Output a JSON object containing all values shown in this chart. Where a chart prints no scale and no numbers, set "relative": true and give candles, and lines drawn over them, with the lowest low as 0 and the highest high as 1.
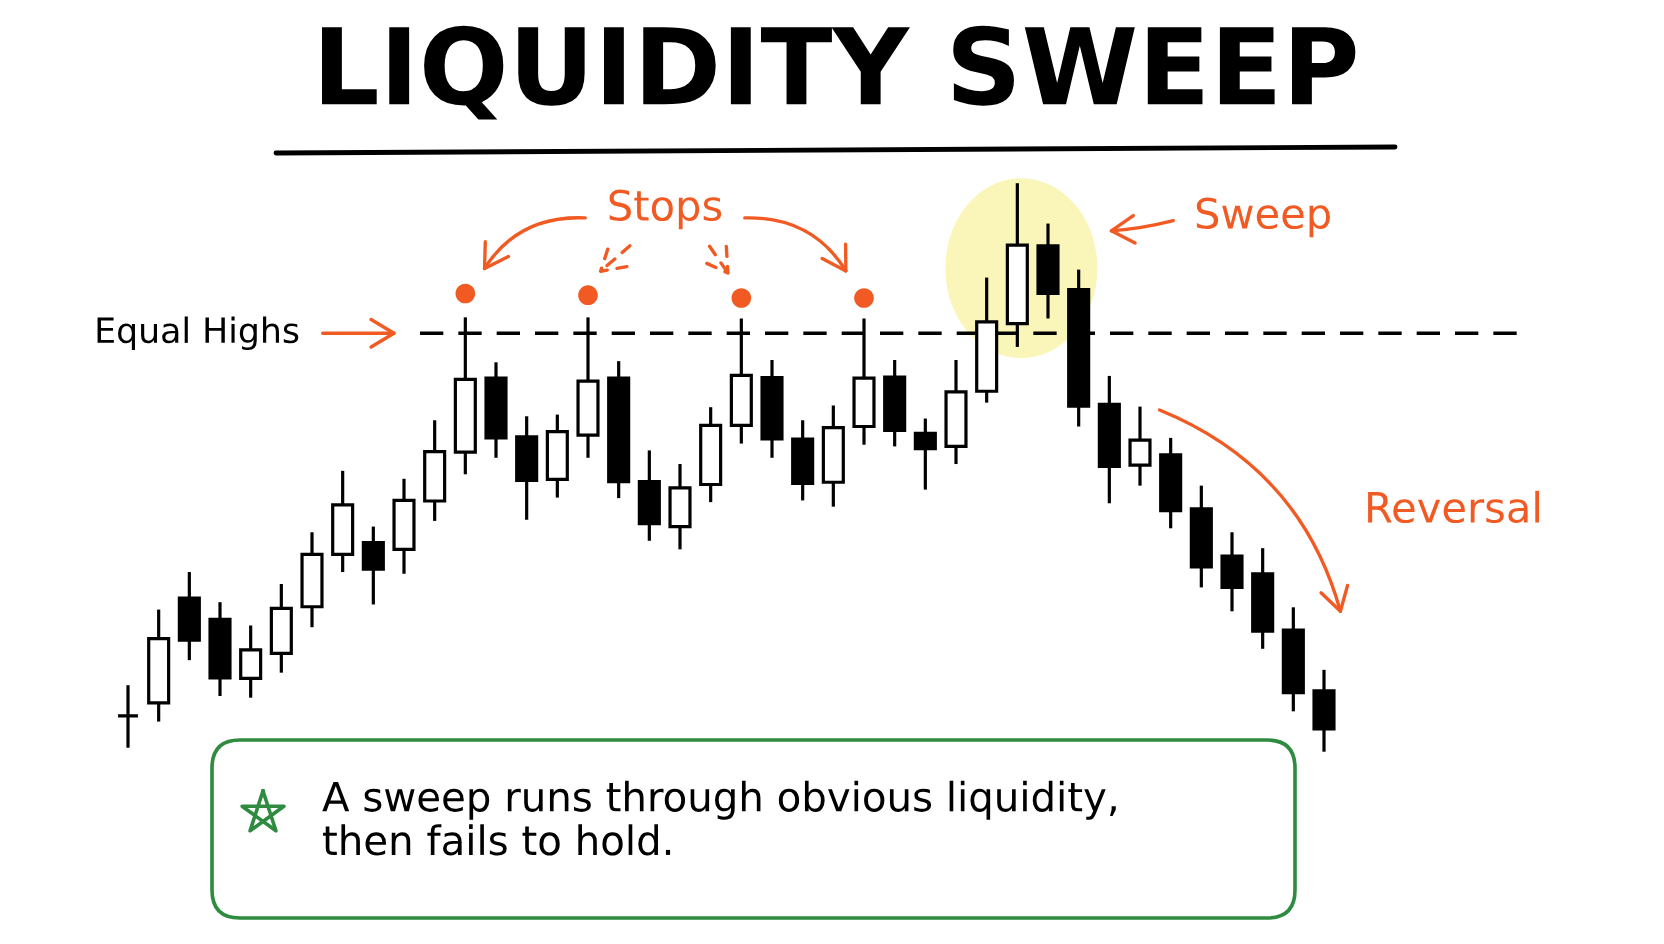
{
  "chart_data": {
    "type": "candlestick",
    "title": "LIQUIDITY SWEEP",
    "relative": true,
    "categories": [
      null,
      null,
      null,
      null,
      null,
      null,
      null,
      null,
      null,
      null,
      null,
      null,
      null,
      null,
      null,
      null,
      null,
      null,
      null,
      null,
      null,
      null,
      null,
      null,
      null,
      null,
      null,
      null,
      null,
      null,
      null,
      null,
      null,
      null,
      null,
      null,
      null,
      null,
      null,
      null
    ],
    "ohlc": [
      [
        0.063,
        0.117,
        0.007,
        0.063
      ],
      [
        0.086,
        0.25,
        0.053,
        0.199
      ],
      [
        0.27,
        0.316,
        0.161,
        0.196
      ],
      [
        0.233,
        0.263,
        0.098,
        0.13
      ],
      [
        0.129,
        0.222,
        0.095,
        0.179
      ],
      [
        0.173,
        0.295,
        0.139,
        0.252
      ],
      [
        0.255,
        0.386,
        0.219,
        0.347
      ],
      [
        0.347,
        0.494,
        0.316,
        0.434
      ],
      [
        0.368,
        0.396,
        0.259,
        0.321
      ],
      [
        0.356,
        0.48,
        0.313,
        0.442
      ],
      [
        0.441,
        0.583,
        0.406,
        0.528
      ],
      [
        0.527,
        0.764,
        0.488,
        0.655
      ],
      [
        0.657,
        0.685,
        0.517,
        0.552
      ],
      [
        0.554,
        0.59,
        0.408,
        0.477
      ],
      [
        0.479,
        0.593,
        0.447,
        0.563
      ],
      [
        0.557,
        0.764,
        0.517,
        0.652
      ],
      [
        0.657,
        0.687,
        0.446,
        0.475
      ],
      [
        0.475,
        0.53,
        0.371,
        0.401
      ],
      [
        0.396,
        0.506,
        0.356,
        0.464
      ],
      [
        0.47,
        0.606,
        0.439,
        0.574
      ],
      [
        0.574,
        0.762,
        0.542,
        0.662
      ],
      [
        0.658,
        0.689,
        0.517,
        0.55
      ],
      [
        0.55,
        0.583,
        0.442,
        0.472
      ],
      [
        0.474,
        0.609,
        0.431,
        0.57
      ],
      [
        0.572,
        0.762,
        0.54,
        0.657
      ],
      [
        0.659,
        0.689,
        0.537,
        0.565
      ],
      [
        0.56,
        0.586,
        0.461,
        0.533
      ],
      [
        0.537,
        0.689,
        0.506,
        0.633
      ],
      [
        0.634,
        0.834,
        0.614,
        0.756
      ],
      [
        0.753,
        1.0,
        0.712,
        0.891
      ],
      [
        0.89,
        0.929,
        0.762,
        0.806
      ],
      [
        0.813,
        0.848,
        0.572,
        0.608
      ],
      [
        0.611,
        0.661,
        0.437,
        0.502
      ],
      [
        0.504,
        0.607,
        0.468,
        0.548
      ],
      [
        0.522,
        0.552,
        0.393,
        0.424
      ],
      [
        0.427,
        0.468,
        0.289,
        0.325
      ],
      [
        0.344,
        0.386,
        0.247,
        0.289
      ],
      [
        0.313,
        0.358,
        0.181,
        0.212
      ],
      [
        0.214,
        0.254,
        0.071,
        0.104
      ],
      [
        0.107,
        0.144,
        0.0,
        0.04
      ]
    ],
    "colors": [
      "#000000",
      "#ffffff",
      "#000000",
      "#000000",
      "#ffffff",
      "#ffffff",
      "#ffffff",
      "#ffffff",
      "#000000",
      "#ffffff",
      "#ffffff",
      "#ffffff",
      "#000000",
      "#000000",
      "#ffffff",
      "#ffffff",
      "#000000",
      "#000000",
      "#ffffff",
      "#ffffff",
      "#ffffff",
      "#000000",
      "#000000",
      "#ffffff",
      "#ffffff",
      "#000000",
      "#000000",
      "#ffffff",
      "#ffffff",
      "#ffffff",
      "#000000",
      "#000000",
      "#000000",
      "#ffffff",
      "#000000",
      "#000000",
      "#000000",
      "#000000",
      "#000000",
      "#000000"
    ],
    "series": [
      {
        "type": "scatter",
        "color": "#f15a22",
        "values": [
          null,
          null,
          null,
          null,
          null,
          null,
          null,
          null,
          null,
          null,
          null,
          0.806,
          null,
          null,
          null,
          0.803,
          null,
          null,
          null,
          null,
          0.798,
          null,
          null,
          null,
          0.798,
          null,
          null,
          null,
          null,
          null,
          null,
          null,
          null,
          null,
          null,
          null,
          null,
          null,
          null,
          null
        ]
      }
    ],
    "marker": "circle",
    "ref_lines": [
      {
        "axis": "y",
        "value": 0.736,
        "label": "Equal Highs",
        "color": "#000000",
        "line_style": "dashed"
      }
    ],
    "annotations": [
      "Stops",
      "Sweep",
      "Reversal",
      "A sweep runs through obvious liquidity,\nthen fails to hold."
    ]
  }
}
